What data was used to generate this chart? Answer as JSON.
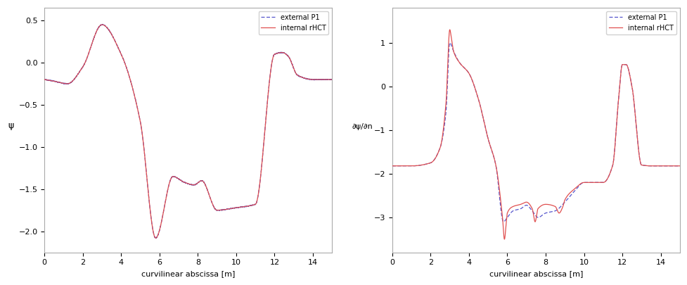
{
  "xlabel": "curvilinear abscissa [m]",
  "ylabel_left": "ψ",
  "ylabel_right": "∂ψ/∂n",
  "xlim": [
    0,
    15
  ],
  "ylim_left": [
    -2.25,
    0.65
  ],
  "ylim_right": [
    -3.8,
    1.8
  ],
  "legend_internal": "internal rHCT",
  "legend_external": "external P1",
  "color_internal": "#e05050",
  "color_external": "#5555cc",
  "figsize": [
    9.78,
    4.05
  ],
  "dpi": 100
}
